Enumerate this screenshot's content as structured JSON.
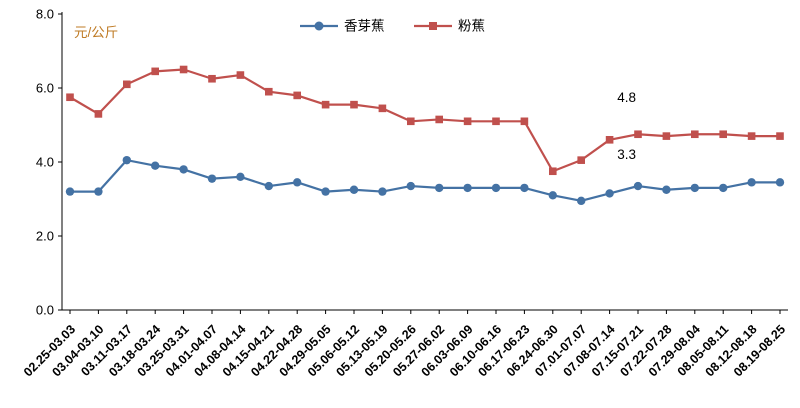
{
  "chart_data": {
    "type": "line",
    "title": "",
    "unit_label": "元/公斤",
    "unit_label_color": "#bf7b25",
    "xlabel": "",
    "ylabel": "元/公斤",
    "ylim": [
      0,
      8
    ],
    "yticks": [
      0,
      2,
      4,
      6,
      8
    ],
    "ytick_labels": [
      "0.0",
      "2.0",
      "4.0",
      "6.0",
      "8.0"
    ],
    "grid": false,
    "legend_position": "top-center",
    "categories": [
      "02.25-03.03",
      "03.04-03.10",
      "03.11-03.17",
      "03.18-03.24",
      "03.25-03.31",
      "04.01-04.07",
      "04.08-04.14",
      "04.15-04.21",
      "04.22-04.28",
      "04.29-05.05",
      "05.06-05.12",
      "05.13-05.19",
      "05.20-05.26",
      "05.27-06.02",
      "06.03-06.09",
      "06.10-06.16",
      "06.17-06.23",
      "06.24-06.30",
      "07.01-07.07",
      "07.08-07.14",
      "07.15-07.21",
      "07.22-07.28",
      "07.29-08.04",
      "08.05-08.11",
      "08.12-08.18",
      "08.19-08.25"
    ],
    "series": [
      {
        "name": "香芽蕉",
        "color": "#4472a4",
        "marker": "circle",
        "values": [
          3.2,
          3.2,
          4.05,
          3.9,
          3.8,
          3.55,
          3.6,
          3.35,
          3.45,
          3.2,
          3.25,
          3.2,
          3.35,
          3.3,
          3.3,
          3.3,
          3.3,
          3.1,
          2.95,
          3.15,
          3.35,
          3.25,
          3.3,
          3.3,
          3.45,
          3.45
        ]
      },
      {
        "name": "粉蕉",
        "color": "#c0504d",
        "marker": "square",
        "values": [
          5.75,
          5.3,
          6.1,
          6.45,
          6.5,
          6.25,
          6.35,
          5.9,
          5.8,
          5.55,
          5.55,
          5.45,
          5.1,
          5.15,
          5.1,
          5.1,
          5.1,
          3.75,
          4.05,
          4.6,
          4.75,
          4.7,
          4.75,
          4.75,
          4.7,
          4.7
        ]
      }
    ],
    "annotations": [
      {
        "text": "4.8",
        "x_index": 19.6,
        "value": 5.62
      },
      {
        "text": "3.3",
        "x_index": 19.6,
        "value": 4.08
      }
    ]
  }
}
